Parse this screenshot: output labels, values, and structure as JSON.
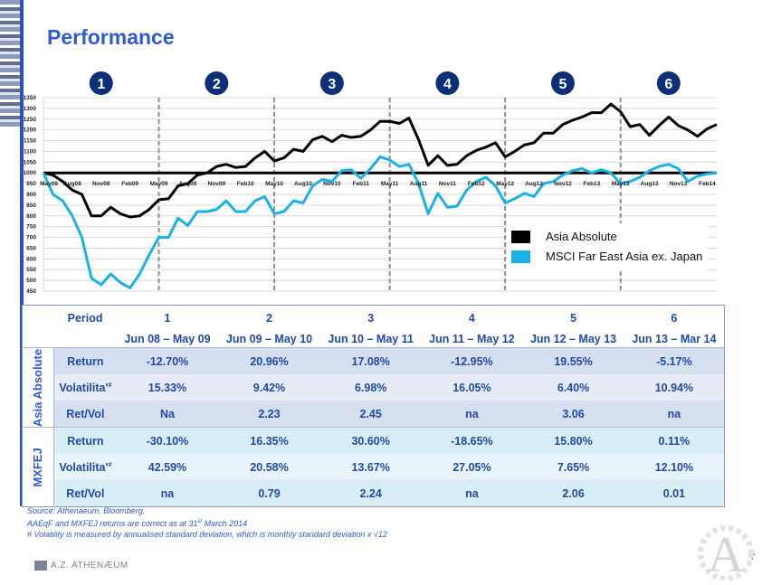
{
  "page": {
    "title": "Performance",
    "page_number": "7",
    "logo_text": "A.Z. ATHENÆUM",
    "watermark_letter": "A"
  },
  "chart_data": {
    "type": "line",
    "ylim": [
      450,
      1350
    ],
    "yticks": [
      450,
      500,
      550,
      600,
      650,
      700,
      750,
      800,
      850,
      900,
      950,
      1000,
      1050,
      1100,
      1150,
      1200,
      1250,
      1300,
      1350
    ],
    "xlabels": [
      "May08",
      "Aug08",
      "Nov08",
      "Feb09",
      "May09",
      "Aug09",
      "Nov09",
      "Feb10",
      "May10",
      "Aug10",
      "Nov10",
      "Feb11",
      "May11",
      "Aug11",
      "Nov11",
      "Feb12",
      "May12",
      "Aug12",
      "Nov12",
      "Feb13",
      "May13",
      "Aug13",
      "Nov13",
      "Feb14"
    ],
    "period_markers": [
      "1",
      "2",
      "3",
      "4",
      "5",
      "6"
    ],
    "period_boundaries": [
      12,
      24,
      36,
      48,
      60
    ],
    "baseline": 1000,
    "series": [
      {
        "name": "Asia Absolute",
        "color": "#000000",
        "values": [
          1000,
          990,
          960,
          920,
          900,
          800,
          800,
          840,
          810,
          795,
          800,
          830,
          875,
          880,
          940,
          950,
          990,
          1000,
          1030,
          1040,
          1025,
          1030,
          1070,
          1100,
          1055,
          1070,
          1110,
          1100,
          1155,
          1170,
          1145,
          1175,
          1165,
          1170,
          1200,
          1240,
          1240,
          1230,
          1255,
          1155,
          1035,
          1080,
          1035,
          1040,
          1080,
          1105,
          1120,
          1140,
          1075,
          1100,
          1130,
          1140,
          1185,
          1185,
          1225,
          1245,
          1260,
          1280,
          1280,
          1320,
          1285,
          1215,
          1225,
          1175,
          1220,
          1260,
          1220,
          1200,
          1170,
          1205,
          1225
        ]
      },
      {
        "name": "MSCI Far East Asia ex. Japan",
        "color": "#1ab2e6",
        "values": [
          1000,
          900,
          870,
          800,
          700,
          510,
          480,
          530,
          490,
          465,
          530,
          620,
          700,
          700,
          790,
          755,
          820,
          820,
          830,
          870,
          820,
          820,
          870,
          890,
          810,
          820,
          870,
          860,
          940,
          970,
          960,
          1010,
          1015,
          975,
          1020,
          1075,
          1060,
          1030,
          1040,
          950,
          810,
          905,
          840,
          845,
          920,
          960,
          980,
          940,
          860,
          880,
          905,
          890,
          950,
          960,
          990,
          1010,
          1020,
          1000,
          1015,
          1000,
          950,
          960,
          980,
          1010,
          1030,
          1040,
          1020,
          960,
          985,
          995,
          1000
        ]
      }
    ]
  },
  "table": {
    "period_header": "Period",
    "periods": [
      "1",
      "2",
      "3",
      "4",
      "5",
      "6"
    ],
    "date_ranges": [
      "Jun 08 – May 09",
      "Jun 09 – May 10",
      "Jun 10 – May 11",
      "Jun 11 – May 12",
      "Jun 12 – May 13",
      "Jun 13 – Mar 14"
    ],
    "groups": [
      {
        "label": "Asia Absolute",
        "rows": [
          {
            "label": "Return",
            "values": [
              "-12.70%",
              "20.96%",
              "17.08%",
              "-12.95%",
              "19.55%",
              "-5.17%"
            ]
          },
          {
            "label": "Volatilita'",
            "mark": "#",
            "values": [
              "15.33%",
              "9.42%",
              "6.98%",
              "16.05%",
              "6.40%",
              "10.94%"
            ]
          },
          {
            "label": "Ret/Vol",
            "values": [
              "Na",
              "2.23",
              "2.45",
              "na",
              "3.06",
              "na"
            ]
          }
        ]
      },
      {
        "label": "MXFEJ",
        "rows": [
          {
            "label": "Return",
            "values": [
              "-30.10%",
              "16.35%",
              "30.60%",
              "-18.65%",
              "15.80%",
              "0.11%"
            ]
          },
          {
            "label": "Volatilita'",
            "mark": "#",
            "values": [
              "42.59%",
              "20.58%",
              "13.67%",
              "27.05%",
              "7.65%",
              "12.10%"
            ]
          },
          {
            "label": "Ret/Vol",
            "values": [
              "na",
              "0.79",
              "2.24",
              "na",
              "2.06",
              "0.01"
            ]
          }
        ]
      }
    ]
  },
  "footnotes": {
    "source": "Source: Athenaeum, Bloomberg.",
    "returns_note": "AAEqF and MXFEJ returns are correct as at 31",
    "returns_note_sup": "st",
    "returns_note_end": " March 2014",
    "volatility_note": "# Volatility is measured by annualised standard deviation, which is monthly standard deviation x √12"
  }
}
